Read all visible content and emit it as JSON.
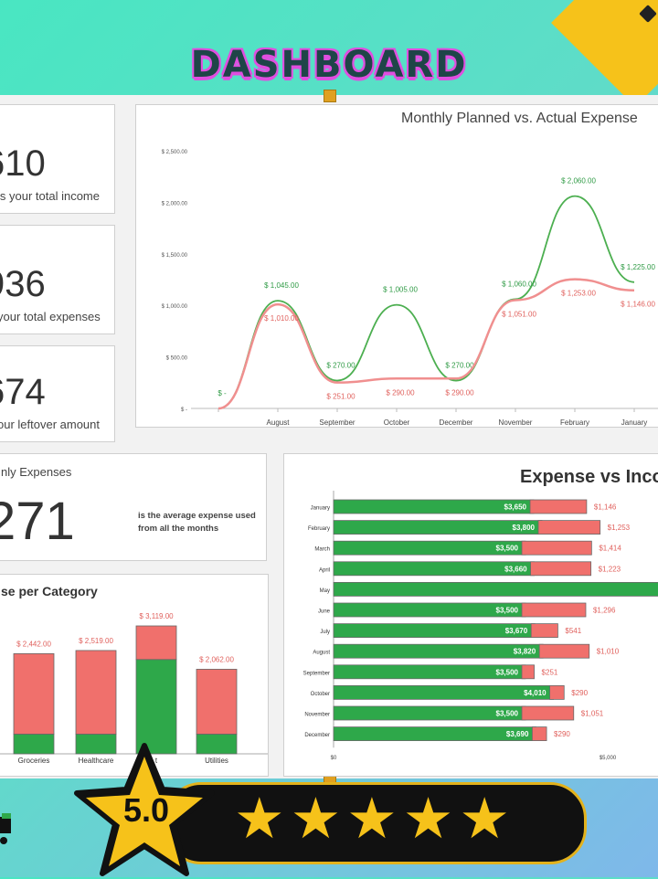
{
  "header": {
    "title": "DASHBOARD"
  },
  "kpis": [
    {
      "value": "610",
      "label": "is your total income"
    },
    {
      "value": "936",
      "label": "your total expenses"
    },
    {
      "value": "674",
      "label": "our leftover amount"
    }
  ],
  "monthly_avg": {
    "title": "nly Expenses",
    "value": "271",
    "desc_line1": "is the average expense used",
    "desc_line2": "from all the months"
  },
  "colors": {
    "green": "#2ea84a",
    "red": "#f0706c",
    "green_line": "#4caf50",
    "red_line": "#f08f8f"
  },
  "rating": {
    "score": "5.0",
    "stars": "★★★★★"
  },
  "chart_data": [
    {
      "type": "line",
      "title": "Monthly Planned vs. Actual Expense",
      "categories": [
        "",
        "August",
        "September",
        "October",
        "December",
        "November",
        "February",
        "January"
      ],
      "y_ticks": [
        "$ 2,500.00",
        "$ 2,000.00",
        "$ 1,500.00",
        "$ 1,000.00",
        "$ 500.00",
        "$ -"
      ],
      "ylim": [
        0,
        2500
      ],
      "series": [
        {
          "values": [
            0,
            1045,
            270,
            1005,
            270,
            1060,
            2060,
            1225
          ],
          "labels": [
            "$ -",
            "$ 1,045.00",
            "$ 270.00",
            "$ 1,005.00",
            "$ 270.00",
            "$ 1,060.00",
            "$ 2,060.00",
            "$ 1,225.00"
          ]
        },
        {
          "values": [
            0,
            1010,
            251,
            290,
            290,
            1051,
            1253,
            1146
          ],
          "labels": [
            "",
            "$ 1,010.00",
            "$ 251.00",
            "$ 290.00",
            "$ 290.00",
            "$ 1,051.00",
            "$ 1,253.00",
            "$ 1,146.00"
          ]
        }
      ]
    },
    {
      "type": "bar",
      "title": "Expense vs Inco",
      "categories": [
        "January",
        "February",
        "March",
        "April",
        "May",
        "June",
        "July",
        "August",
        "September",
        "October",
        "November",
        "December"
      ],
      "series": [
        {
          "values": [
            3650,
            3800,
            3500,
            3660,
            6000,
            3500,
            3670,
            3820,
            3500,
            4010,
            3500,
            3690
          ],
          "labels": [
            "$3,650",
            "$3,800",
            "$3,500",
            "$3,660",
            "",
            "$3,500",
            "$3,670",
            "$3,820",
            "$3,500",
            "$4,010",
            "$3,500",
            "$3,690"
          ]
        },
        {
          "values": [
            1146,
            1253,
            1414,
            1223,
            0,
            1296,
            541,
            1010,
            251,
            290,
            1051,
            290
          ],
          "labels": [
            "$1,146",
            "$1,253",
            "$1,414",
            "$1,223",
            "",
            "$1,296",
            "$541",
            "$1,010",
            "$251",
            "$290",
            "$1,051",
            "$290"
          ]
        }
      ],
      "x_ticks": [
        "$0",
        "$5,000"
      ],
      "xlim": [
        0,
        6400
      ]
    },
    {
      "type": "bar",
      "title": "se per Category",
      "categories": [
        "Groceries",
        "Healthcare",
        "t",
        "Utilities"
      ],
      "series": [
        {
          "values": [
            480,
            480,
            2300,
            480
          ]
        },
        {
          "values": [
            1962,
            2039,
            819,
            1582
          ]
        }
      ],
      "totals": [
        "$ 2,442.00",
        "$ 2,519.00",
        "$ 3,119.00",
        "$ 2,062.00"
      ],
      "ylim": [
        0,
        3500
      ]
    }
  ]
}
